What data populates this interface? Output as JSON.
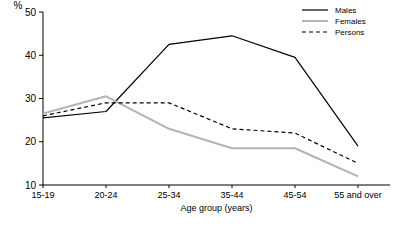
{
  "chart_data": {
    "type": "line",
    "y_label": "%",
    "x_label": "Age group (years)",
    "categories": [
      "15-19",
      "20-24",
      "25-34",
      "35-44",
      "45-54",
      "55 and over"
    ],
    "series": [
      {
        "name": "Males",
        "color": "#000000",
        "line_style": "solid",
        "values": [
          25.5,
          27,
          42.5,
          44.5,
          39.5,
          19
        ]
      },
      {
        "name": "Females",
        "color": "#b3b3b3",
        "line_style": "solid",
        "values": [
          26.5,
          30.5,
          23,
          18.5,
          18.5,
          12
        ]
      },
      {
        "name": "Persons",
        "color": "#000000",
        "line_style": "dashed",
        "values": [
          26,
          29,
          29,
          23,
          22,
          15
        ]
      }
    ],
    "ylim": [
      10,
      50
    ],
    "yticks": [
      10,
      20,
      30,
      40,
      50
    ],
    "grid": false,
    "legend": "top-right"
  }
}
